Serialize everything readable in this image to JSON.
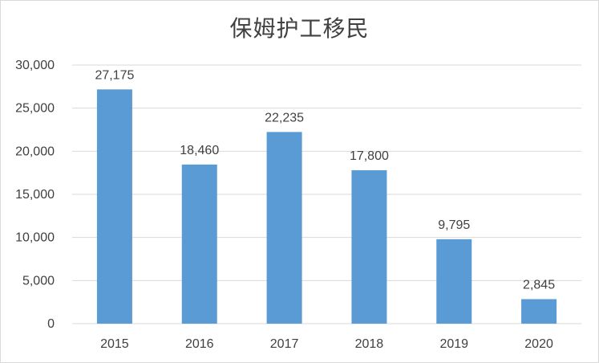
{
  "chart_data": {
    "type": "bar",
    "title": "保姆护工移民",
    "categories": [
      "2015",
      "2016",
      "2017",
      "2018",
      "2019",
      "2020"
    ],
    "values": [
      27175,
      18460,
      22235,
      17800,
      9795,
      2845
    ],
    "data_labels": [
      "27,175",
      "18,460",
      "22,235",
      "17,800",
      "9,795",
      "2,845"
    ],
    "ylim": [
      0,
      30000
    ],
    "y_ticks": [
      0,
      5000,
      10000,
      15000,
      20000,
      25000,
      30000
    ],
    "y_tick_labels": [
      "0",
      "5,000",
      "10,000",
      "15,000",
      "20,000",
      "25,000",
      "30,000"
    ],
    "grid": true,
    "legend": "none",
    "bar_color": "#5b9bd5",
    "xlabel": "",
    "ylabel": ""
  }
}
